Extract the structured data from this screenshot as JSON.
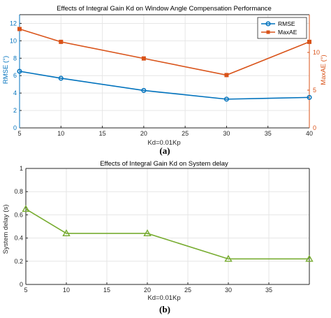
{
  "chart_data": [
    {
      "type": "line",
      "title": "Effects of Integral Gain Kd on Window Angle Compensation Performance",
      "caption": "(a)",
      "xlabel": "Kd=0.01Kp",
      "ylabel": "RMSE (°)",
      "y2label": "MaxAE (°)",
      "xlim": [
        5,
        40
      ],
      "ylim": [
        0,
        13
      ],
      "y2lim": [
        0,
        15
      ],
      "xticks": [
        "5",
        "10",
        "15",
        "20",
        "25",
        "30",
        "35",
        "40"
      ],
      "yticks": [
        "0",
        "2",
        "4",
        "6",
        "8",
        "10",
        "12"
      ],
      "y2ticks": [
        "0",
        "5",
        "10"
      ],
      "grid": true,
      "legend": "top-right",
      "series": [
        {
          "name": "RMSE",
          "axis": "left",
          "color": "#0072BD",
          "marker": "circle",
          "x": [
            5,
            10,
            20,
            30,
            40
          ],
          "y": [
            6.5,
            5.7,
            4.3,
            3.3,
            3.5
          ]
        },
        {
          "name": "MaxAE",
          "axis": "right",
          "color": "#D95319",
          "marker": "square",
          "x": [
            5,
            10,
            20,
            30,
            40
          ],
          "y": [
            13.1,
            11.4,
            9.2,
            7.0,
            11.4
          ]
        }
      ]
    },
    {
      "type": "line",
      "title": "Effects of Integral Gain Kd on System delay",
      "caption": "(b)",
      "xlabel": "Kd=0.01Kp",
      "ylabel": "System delay (s)",
      "xlim": [
        5,
        40
      ],
      "ylim": [
        0,
        1
      ],
      "xticks": [
        "5",
        "10",
        "15",
        "20",
        "25",
        "30",
        "35"
      ],
      "yticks": [
        "0",
        "0.2",
        "0.4",
        "0.6",
        "0.8",
        "1"
      ],
      "grid": true,
      "series": [
        {
          "color": "#77AC30",
          "marker": "triangle",
          "x": [
            5,
            10,
            20,
            30,
            40
          ],
          "y": [
            0.65,
            0.44,
            0.44,
            0.22,
            0.22
          ]
        }
      ]
    }
  ]
}
